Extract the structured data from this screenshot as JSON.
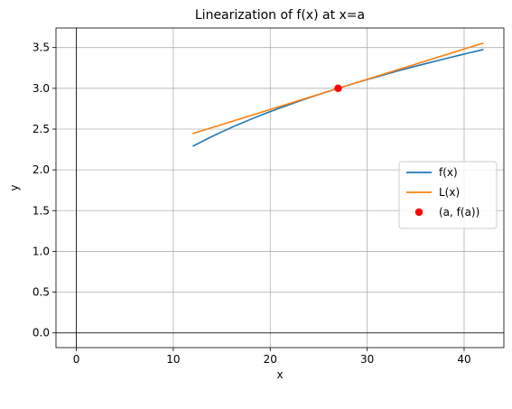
{
  "chart_data": {
    "type": "line",
    "title": "Linearization of f(x) at x=a",
    "xlabel": "x",
    "ylabel": "y",
    "xlim": [
      -2.1,
      44.1
    ],
    "ylim": [
      -0.18,
      3.74
    ],
    "xticks": [
      0,
      10,
      20,
      30,
      40
    ],
    "xtick_labels": [
      "0",
      "10",
      "20",
      "30",
      "40"
    ],
    "yticks": [
      0.0,
      0.5,
      1.0,
      1.5,
      2.0,
      2.5,
      3.0,
      3.5
    ],
    "ytick_labels": [
      "0.0",
      "0.5",
      "1.0",
      "1.5",
      "2.0",
      "2.5",
      "3.0",
      "3.5"
    ],
    "grid": true,
    "reference_lines": {
      "x0": true,
      "y0": true
    },
    "legend": {
      "placement": "center-right"
    },
    "series": [
      {
        "name": "f(x)",
        "kind": "line",
        "color": "#1f77b4",
        "x": [
          12,
          13.5,
          15,
          16.5,
          18,
          19.5,
          21,
          22.5,
          24,
          25.5,
          27,
          28.5,
          30,
          31.5,
          33,
          34.5,
          36,
          37.5,
          39,
          40.5,
          42
        ],
        "y": [
          2.289,
          2.381,
          2.466,
          2.546,
          2.621,
          2.692,
          2.759,
          2.823,
          2.884,
          2.943,
          3.0,
          3.055,
          3.107,
          3.158,
          3.208,
          3.256,
          3.302,
          3.347,
          3.391,
          3.434,
          3.476
        ]
      },
      {
        "name": "L(x)",
        "kind": "line",
        "color": "#ff7f0e",
        "x": [
          12,
          42
        ],
        "y": [
          2.444,
          3.556
        ]
      },
      {
        "name": "(a, f(a))",
        "kind": "scatter",
        "color": "#ff0000",
        "x": [
          27
        ],
        "y": [
          3.0
        ]
      }
    ]
  }
}
